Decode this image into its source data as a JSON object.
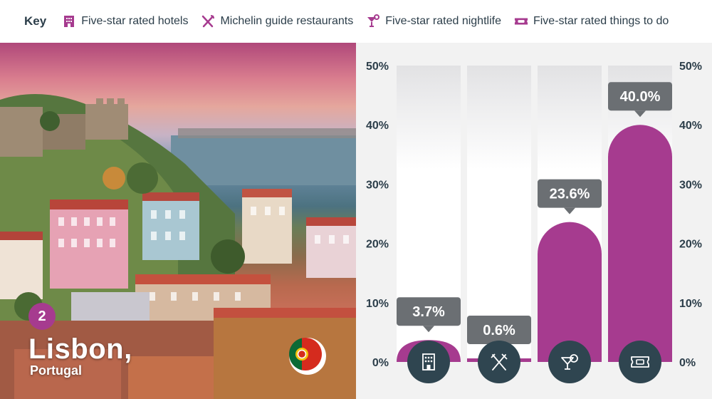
{
  "key": {
    "title": "Key",
    "items": [
      {
        "label": "Five-star rated hotels",
        "icon": "hotel-icon"
      },
      {
        "label": "Michelin guide restaurants",
        "icon": "cutlery-icon"
      },
      {
        "label": "Five-star rated nightlife",
        "icon": "cocktail-icon"
      },
      {
        "label": "Five-star rated things to do",
        "icon": "ticket-icon"
      }
    ]
  },
  "location": {
    "rank": "2",
    "city": "Lisbon,",
    "country": "Portugal",
    "flag_icon": "portugal-flag-icon"
  },
  "colors": {
    "accent": "#a63b8f",
    "icon_circle": "#2f4550",
    "bubble": "#6b6f73",
    "text": "#2c3e4a"
  },
  "chart_data": {
    "type": "bar",
    "categories": [
      "Five-star rated hotels",
      "Michelin guide restaurants",
      "Five-star rated nightlife",
      "Five-star rated things to do"
    ],
    "values": [
      3.7,
      0.6,
      23.6,
      40.0
    ],
    "value_labels": [
      "3.7%",
      "0.6%",
      "23.6%",
      "40.0%"
    ],
    "icons": [
      "hotel-icon",
      "cutlery-icon",
      "cocktail-icon",
      "ticket-icon"
    ],
    "ylim": [
      0,
      50
    ],
    "yticks": [
      "0%",
      "10%",
      "20%",
      "30%",
      "40%",
      "50%"
    ],
    "ytick_values": [
      0,
      10,
      20,
      30,
      40,
      50
    ],
    "axis_sides": "both"
  }
}
